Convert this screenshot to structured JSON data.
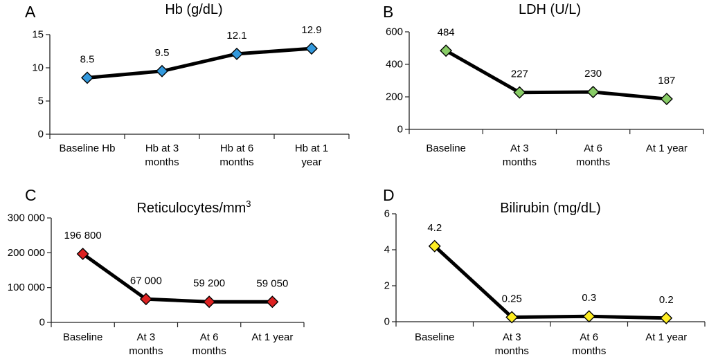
{
  "chart_data": [
    {
      "type": "line",
      "panel_label": "A",
      "title": "Hb (g/dL)",
      "title_superscript": "",
      "categories": [
        "Baseline Hb",
        "Hb at 3 months",
        "Hb at 6 months",
        "Hb at 1 year"
      ],
      "category_lines": [
        [
          "Baseline Hb"
        ],
        [
          "Hb at 3",
          "months"
        ],
        [
          "Hb at 6",
          "months"
        ],
        [
          "Hb at 1",
          "year"
        ]
      ],
      "values": [
        8.5,
        9.5,
        12.1,
        12.9
      ],
      "data_labels": [
        "8.5",
        "9.5",
        "12.1",
        "12.9"
      ],
      "ylim": [
        0,
        15
      ],
      "yticks": [
        0,
        5,
        10,
        15
      ],
      "ytick_labels": [
        "0",
        "5",
        "10",
        "15"
      ],
      "marker_color": "#3399dd",
      "grid": false
    },
    {
      "type": "line",
      "panel_label": "B",
      "title": "LDH (U/L)",
      "title_superscript": "",
      "categories": [
        "Baseline",
        "At 3 months",
        "At 6 months",
        "At 1 year"
      ],
      "category_lines": [
        [
          "Baseline"
        ],
        [
          "At 3",
          "months"
        ],
        [
          "At 6",
          "months"
        ],
        [
          "At 1 year"
        ]
      ],
      "values": [
        484,
        227,
        230,
        187
      ],
      "data_labels": [
        "484",
        "227",
        "230",
        "187"
      ],
      "ylim": [
        0,
        600
      ],
      "yticks": [
        0,
        200,
        400,
        600
      ],
      "ytick_labels": [
        "0",
        "200",
        "400",
        "600"
      ],
      "marker_color": "#88cc66",
      "grid": false
    },
    {
      "type": "line",
      "panel_label": "C",
      "title": "Reticulocytes/mm",
      "title_superscript": "3",
      "categories": [
        "Baseline",
        "At 3 months",
        "At 6 months",
        "At 1 year"
      ],
      "category_lines": [
        [
          "Baseline"
        ],
        [
          "At 3",
          "months"
        ],
        [
          "At 6",
          "months"
        ],
        [
          "At 1 year"
        ]
      ],
      "values": [
        196800,
        67000,
        59200,
        59050
      ],
      "data_labels": [
        "196 800",
        "67 000",
        "59 200",
        "59 050"
      ],
      "ylim": [
        0,
        300000
      ],
      "yticks": [
        0,
        100000,
        200000,
        300000
      ],
      "ytick_labels": [
        "0",
        "100 000",
        "200 000",
        "300 000"
      ],
      "marker_color": "#dd2222",
      "grid": false
    },
    {
      "type": "line",
      "panel_label": "D",
      "title": "Bilirubin (mg/dL)",
      "title_superscript": "",
      "categories": [
        "Baseline",
        "At 3 months",
        "At 6 months",
        "At 1 year"
      ],
      "category_lines": [
        [
          "Baseline"
        ],
        [
          "At 3",
          "months"
        ],
        [
          "At 6",
          "months"
        ],
        [
          "At 1 year"
        ]
      ],
      "values": [
        4.2,
        0.25,
        0.3,
        0.2
      ],
      "data_labels": [
        "4.2",
        "0.25",
        "0.3",
        "0.2"
      ],
      "ylim": [
        0,
        6
      ],
      "yticks": [
        0,
        2,
        4,
        6
      ],
      "ytick_labels": [
        "0",
        "2",
        "4",
        "6"
      ],
      "marker_color": "#ffee22",
      "grid": false
    }
  ]
}
